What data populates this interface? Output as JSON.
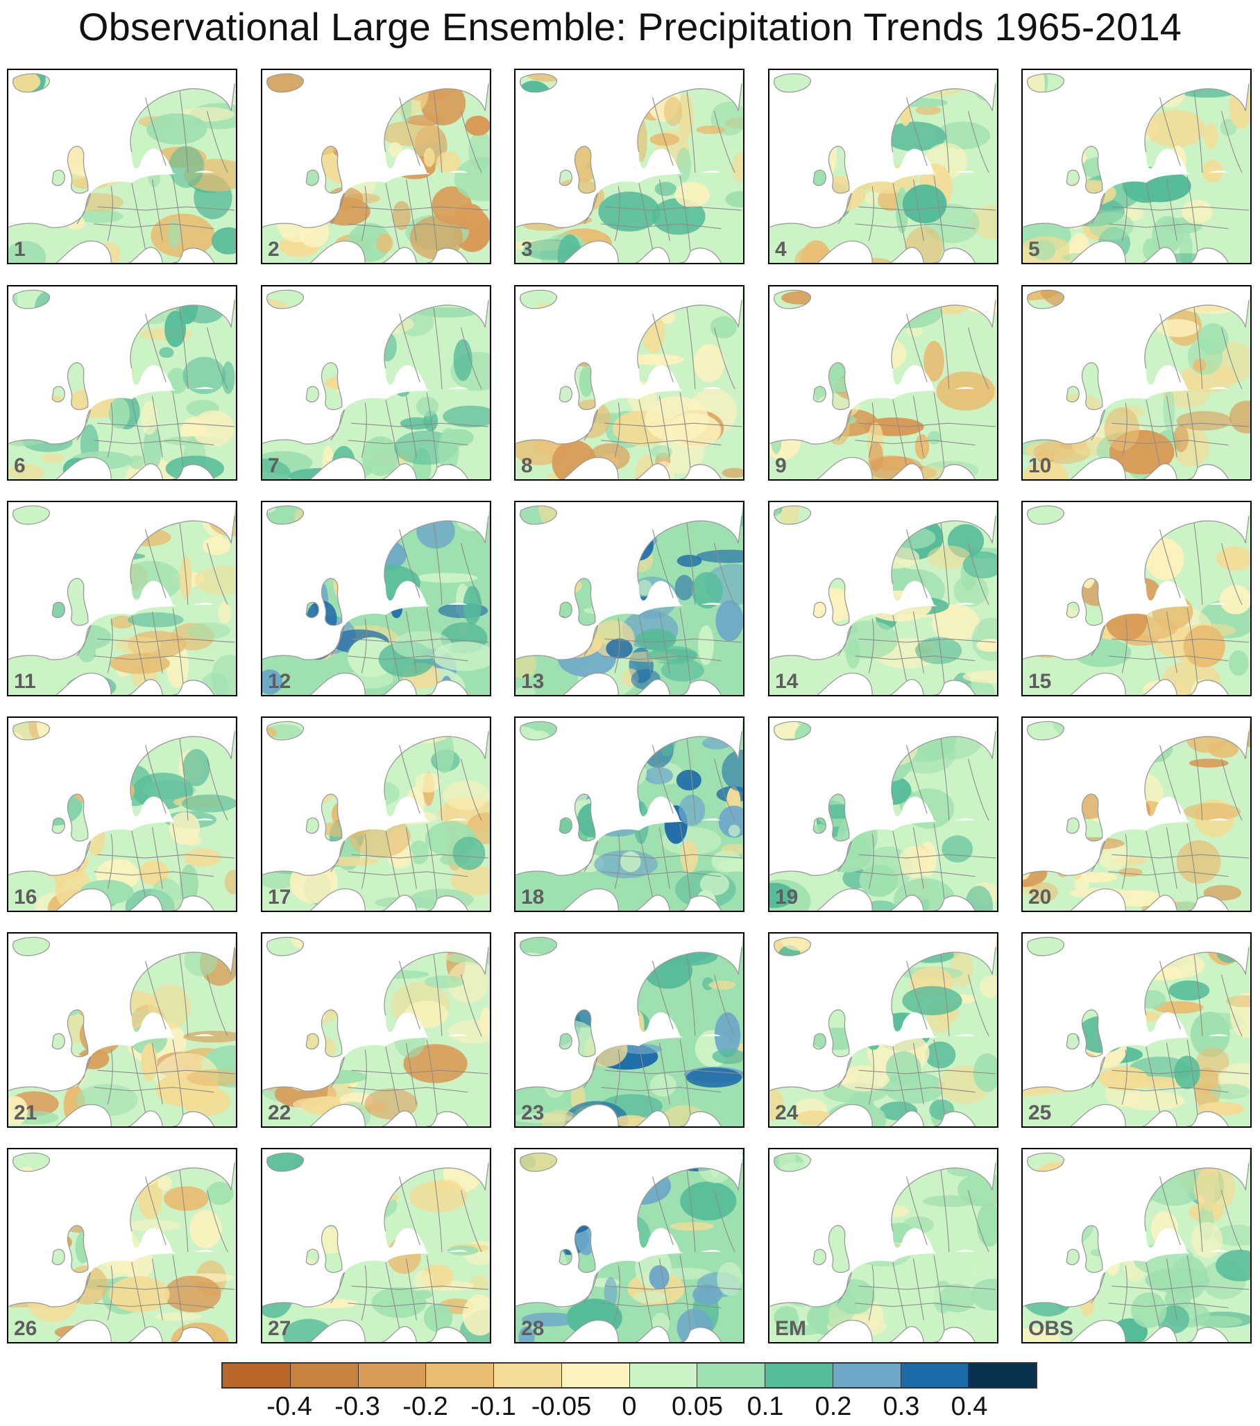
{
  "title": "Observational Large Ensemble: Precipitation Trends 1965-2014",
  "panels": [
    {
      "label": "1",
      "scheme": "mixed"
    },
    {
      "label": "2",
      "scheme": "dry"
    },
    {
      "label": "3",
      "scheme": "mixed"
    },
    {
      "label": "4",
      "scheme": "mixed"
    },
    {
      "label": "5",
      "scheme": "wet"
    },
    {
      "label": "6",
      "scheme": "wet"
    },
    {
      "label": "7",
      "scheme": "wet"
    },
    {
      "label": "8",
      "scheme": "dry"
    },
    {
      "label": "9",
      "scheme": "dry"
    },
    {
      "label": "10",
      "scheme": "dry"
    },
    {
      "label": "11",
      "scheme": "mixed"
    },
    {
      "label": "12",
      "scheme": "verywet"
    },
    {
      "label": "13",
      "scheme": "verywet"
    },
    {
      "label": "14",
      "scheme": "wet"
    },
    {
      "label": "15",
      "scheme": "dry"
    },
    {
      "label": "16",
      "scheme": "mixed"
    },
    {
      "label": "17",
      "scheme": "mixed"
    },
    {
      "label": "18",
      "scheme": "verywet"
    },
    {
      "label": "19",
      "scheme": "wet"
    },
    {
      "label": "20",
      "scheme": "dry"
    },
    {
      "label": "21",
      "scheme": "dry"
    },
    {
      "label": "22",
      "scheme": "dry"
    },
    {
      "label": "23",
      "scheme": "verywet"
    },
    {
      "label": "24",
      "scheme": "wet"
    },
    {
      "label": "25",
      "scheme": "mixed"
    },
    {
      "label": "26",
      "scheme": "dry"
    },
    {
      "label": "27",
      "scheme": "mixed"
    },
    {
      "label": "28",
      "scheme": "verywet"
    },
    {
      "label": "EM",
      "scheme": "em"
    },
    {
      "label": "OBS",
      "scheme": "wet"
    }
  ],
  "colorbar": {
    "colors": [
      "#b9682a",
      "#c98140",
      "#d99c58",
      "#e8bd72",
      "#f3dc95",
      "#fcf2be",
      "#ccf3c6",
      "#9fe0b0",
      "#55bb98",
      "#6ea8c8",
      "#1d6aa8",
      "#08304f"
    ],
    "ticks": [
      "-0.4",
      "-0.3",
      "-0.2",
      "-0.1",
      "-0.05",
      "0",
      "0.05",
      "0.1",
      "0.2",
      "0.3",
      "0.4"
    ]
  }
}
